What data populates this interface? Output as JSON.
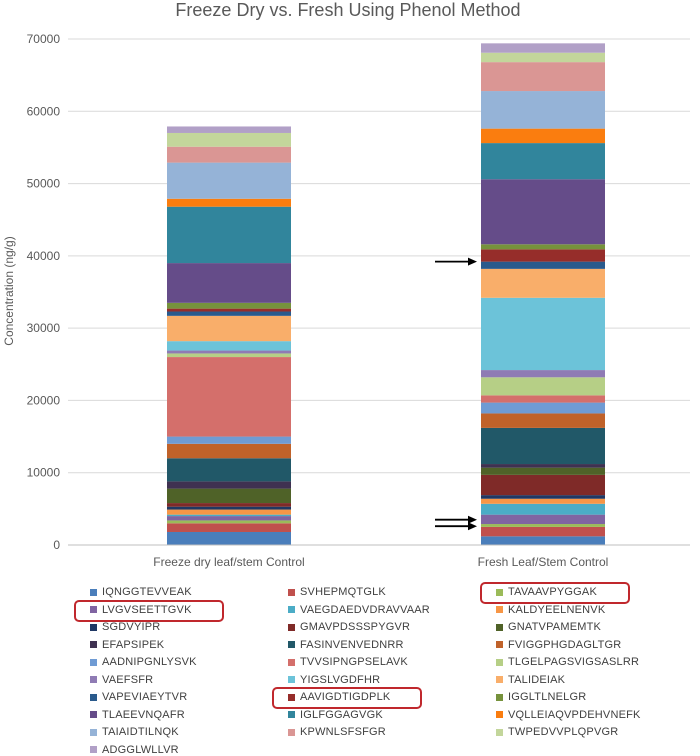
{
  "chart_data": {
    "type": "stacked-bar",
    "title": "Freeze Dry vs. Fresh Using Phenol Method",
    "xlabel": "",
    "ylabel": "Concentration (ng/g)",
    "ylim": [
      0,
      70000
    ],
    "yticks": [
      0,
      10000,
      20000,
      30000,
      40000,
      50000,
      60000,
      70000
    ],
    "ytick_labels": [
      "0",
      "10000",
      "20000",
      "30000",
      "40000",
      "50000",
      "60000",
      "70000"
    ],
    "categories": [
      "Freeze dry leaf/stem Control",
      "Fresh Leaf/Stem Control"
    ],
    "series": [
      {
        "name": "IQNGGTEVVEAK",
        "color": "#4a7ebb",
        "values": [
          1800,
          1200
        ]
      },
      {
        "name": "SVHEPMQTGLK",
        "color": "#c0504d",
        "values": [
          1200,
          1300
        ]
      },
      {
        "name": "TAVAAVPYGGAK",
        "color": "#9bbb59",
        "values": [
          400,
          400
        ]
      },
      {
        "name": "LVGVSEETTGVK",
        "color": "#8064a2",
        "values": [
          600,
          1300
        ]
      },
      {
        "name": "VAEGDAEDVDRAVVAAR",
        "color": "#4bacc6",
        "values": [
          200,
          1500
        ]
      },
      {
        "name": "KALDYEELNENVK",
        "color": "#f79646",
        "values": [
          700,
          700
        ]
      },
      {
        "name": "SGDVYIPR",
        "color": "#1f3864",
        "values": [
          400,
          500
        ]
      },
      {
        "name": "GMAVPDSSSPYGVR",
        "color": "#7f2a28",
        "values": [
          500,
          2800
        ]
      },
      {
        "name": "GNATVPAMEMTK",
        "color": "#4f6228",
        "values": [
          2000,
          1000
        ]
      },
      {
        "name": "EFAPSIPEK",
        "color": "#3f3151",
        "values": [
          1000,
          500
        ]
      },
      {
        "name": "FASINVENVEDNRR",
        "color": "#215868",
        "values": [
          3200,
          5000
        ]
      },
      {
        "name": "FVIGGPHGDAGLTGR",
        "color": "#c0622a",
        "values": [
          2000,
          2000
        ]
      },
      {
        "name": "AADNIPGNLYSVK",
        "color": "#6f9bd4",
        "values": [
          1000,
          1500
        ]
      },
      {
        "name": "TVVSIPNGPSELAVK",
        "color": "#d46f6b",
        "values": [
          11000,
          1000
        ]
      },
      {
        "name": "TLGELPAGSVIGSASLRR",
        "color": "#b6cf86",
        "values": [
          500,
          2500
        ]
      },
      {
        "name": "VAEFSFR",
        "color": "#8f7bb4",
        "values": [
          400,
          1000
        ]
      },
      {
        "name": "YIGSLVGDFHR",
        "color": "#6cc3d9",
        "values": [
          1300,
          10000
        ]
      },
      {
        "name": "TALIDEIAK",
        "color": "#f9ae6a",
        "values": [
          3500,
          4000
        ]
      },
      {
        "name": "VAPEVIAEYTVR",
        "color": "#2a5a8c",
        "values": [
          600,
          1000
        ]
      },
      {
        "name": "AAVIGDTIGDPLK",
        "color": "#962d2a",
        "values": [
          400,
          1700
        ]
      },
      {
        "name": "IGGLTLNELGR",
        "color": "#76923c",
        "values": [
          800,
          700
        ]
      },
      {
        "name": "TLAEEVNQAFR",
        "color": "#654c89",
        "values": [
          5500,
          9000
        ]
      },
      {
        "name": "IGLFGGAGVGK",
        "color": "#31859c",
        "values": [
          7800,
          5000
        ]
      },
      {
        "name": "VQLLEIAQVPDEHVNEFK",
        "color": "#fa7d0f",
        "values": [
          1100,
          2000
        ]
      },
      {
        "name": "TAIAIDTILNQK",
        "color": "#95b3d7",
        "values": [
          5000,
          5200
        ]
      },
      {
        "name": "KPWNLSFSFGR",
        "color": "#da9694",
        "values": [
          2200,
          4000
        ]
      },
      {
        "name": "TWPEDVVPLQPVGR",
        "color": "#c3d69b",
        "values": [
          1900,
          1300
        ]
      },
      {
        "name": "ADGGLWLLVR",
        "color": "#b1a0c7",
        "values": [
          900,
          1300
        ]
      }
    ],
    "highlighted_legend": [
      "TAVAAVPYGGAK",
      "LVGVSEETTGVK",
      "AAVIGDTIGDPLK"
    ],
    "arrows": [
      {
        "category": "Fresh Leaf/Stem Control",
        "y": 39200
      },
      {
        "category": "Fresh Leaf/Stem Control",
        "y": 3500
      },
      {
        "category": "Fresh Leaf/Stem Control",
        "y": 2600
      }
    ]
  }
}
